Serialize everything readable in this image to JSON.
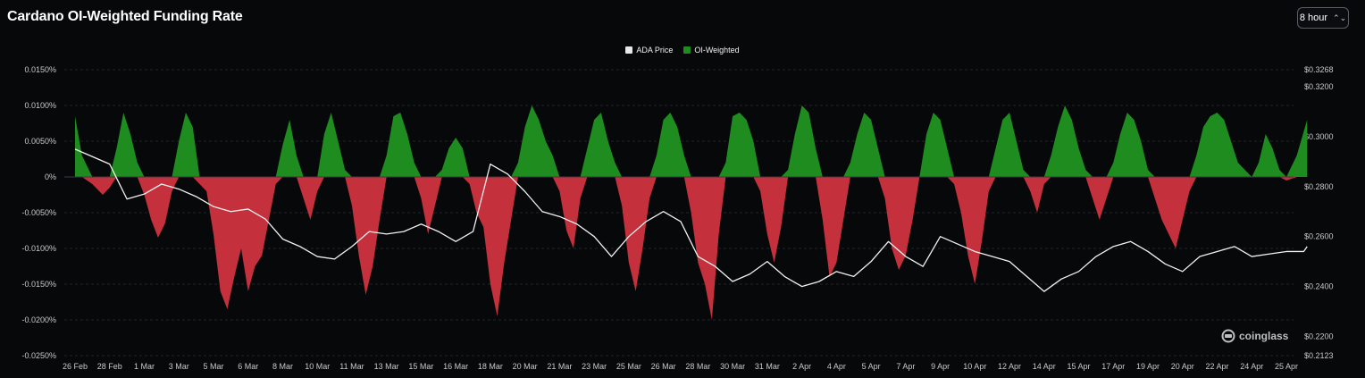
{
  "header": {
    "title": "Cardano OI-Weighted Funding Rate"
  },
  "interval": {
    "selected": "8 hour"
  },
  "brand": {
    "name": "coinglass",
    "icon": "coinglass-logo-icon"
  },
  "colors": {
    "positive": "#1e8c1e",
    "negative": "#c4303c",
    "price": "#f2f2f2",
    "background": "#07080a"
  },
  "chart_data": {
    "type": "area",
    "title": "Cardano OI-Weighted Funding Rate",
    "legend": {
      "placement": "top-center",
      "entries": [
        "ADA Price",
        "OI-Weighted"
      ]
    },
    "grid": true,
    "y_left": {
      "label": "",
      "range": [
        -0.025,
        0.015
      ],
      "ticks": [
        "0.0150%",
        "0.0100%",
        "0.0050%",
        "0%",
        "-0.0050%",
        "-0.0100%",
        "-0.0150%",
        "-0.0200%",
        "-0.0250%"
      ]
    },
    "y_right": {
      "label": "",
      "range": [
        0.2123,
        0.3268
      ],
      "ticks": [
        "$0.3268",
        "$0.3200",
        "$0.3000",
        "$0.2800",
        "$0.2600",
        "$0.2400",
        "$0.2200",
        "$0.2123"
      ]
    },
    "x_ticks": [
      "26 Feb",
      "28 Feb",
      "1 Mar",
      "3 Mar",
      "5 Mar",
      "6 Mar",
      "8 Mar",
      "10 Mar",
      "11 Mar",
      "13 Mar",
      "15 Mar",
      "16 Mar",
      "18 Mar",
      "20 Mar",
      "21 Mar",
      "23 Mar",
      "25 Mar",
      "26 Mar",
      "28 Mar",
      "30 Mar",
      "31 Mar",
      "2 Apr",
      "4 Apr",
      "5 Apr",
      "7 Apr",
      "9 Apr",
      "10 Apr",
      "12 Apr",
      "14 Apr",
      "15 Apr",
      "17 Apr",
      "19 Apr",
      "20 Apr",
      "22 Apr",
      "24 Apr",
      "25 Apr"
    ],
    "series": [
      {
        "name": "OI-Weighted",
        "unit": "%",
        "x_index": [
          0,
          0.2,
          0.5,
          0.8,
          1.0,
          1.2,
          1.4,
          1.6,
          1.8,
          2.0,
          2.2,
          2.4,
          2.6,
          2.8,
          3.0,
          3.2,
          3.4,
          3.6,
          3.8,
          4.0,
          4.2,
          4.4,
          4.6,
          4.8,
          5.0,
          5.2,
          5.4,
          5.6,
          5.8,
          6.0,
          6.2,
          6.4,
          6.6,
          6.8,
          7.0,
          7.2,
          7.4,
          7.6,
          7.8,
          8.0,
          8.2,
          8.4,
          8.6,
          8.8,
          9.0,
          9.2,
          9.4,
          9.6,
          9.8,
          10.0,
          10.2,
          10.4,
          10.6,
          10.8,
          11.0,
          11.2,
          11.4,
          11.6,
          11.8,
          12.0,
          12.2,
          12.4,
          12.6,
          12.8,
          13.0,
          13.2,
          13.4,
          13.6,
          13.8,
          14.0,
          14.2,
          14.4,
          14.6,
          14.8,
          15.0,
          15.2,
          15.4,
          15.6,
          15.8,
          16.0,
          16.2,
          16.4,
          16.6,
          16.8,
          17.0,
          17.2,
          17.4,
          17.6,
          17.8,
          18.0,
          18.2,
          18.4,
          18.6,
          18.8,
          19.0,
          19.2,
          19.4,
          19.6,
          19.8,
          20.0,
          20.2,
          20.4,
          20.6,
          20.8,
          21.0,
          21.2,
          21.4,
          21.6,
          21.8,
          22.0,
          22.2,
          22.4,
          22.6,
          22.8,
          23.0,
          23.2,
          23.4,
          23.6,
          23.8,
          24.0,
          24.2,
          24.4,
          24.6,
          24.8,
          25.0,
          25.2,
          25.4,
          25.6,
          25.8,
          26.0,
          26.2,
          26.4,
          26.6,
          26.8,
          27.0,
          27.2,
          27.4,
          27.6,
          27.8,
          28.0,
          28.2,
          28.4,
          28.6,
          28.8,
          29.0,
          29.2,
          29.4,
          29.6,
          29.8,
          30.0,
          30.2,
          30.4,
          30.6,
          30.8,
          31.0,
          31.2,
          31.4,
          31.6,
          31.8,
          32.0,
          32.2,
          32.4,
          32.6,
          32.8,
          33.0,
          33.2,
          33.4,
          33.6,
          33.8,
          34.0,
          34.2,
          34.4,
          34.6,
          34.8,
          35.0,
          35.3,
          35.6
        ],
        "values": [
          0.0085,
          0.003,
          -0.001,
          -0.0025,
          -0.0015,
          0.004,
          0.009,
          0.006,
          0.002,
          -0.0025,
          -0.006,
          -0.0085,
          -0.0065,
          -0.002,
          0.005,
          0.009,
          0.007,
          -0.001,
          -0.002,
          -0.008,
          -0.016,
          -0.0185,
          -0.014,
          -0.01,
          -0.016,
          -0.0125,
          -0.011,
          -0.006,
          -0.001,
          0.0045,
          0.008,
          0.003,
          -0.003,
          -0.006,
          -0.002,
          0.006,
          0.009,
          0.005,
          0.001,
          -0.004,
          -0.011,
          -0.0165,
          -0.0125,
          -0.006,
          0.003,
          0.0085,
          0.009,
          0.006,
          0.002,
          -0.003,
          -0.008,
          -0.004,
          0.001,
          0.004,
          0.0055,
          0.004,
          -0.001,
          -0.005,
          -0.007,
          -0.015,
          -0.0195,
          -0.012,
          -0.006,
          0.002,
          0.007,
          0.01,
          0.008,
          0.005,
          0.003,
          -0.002,
          -0.0075,
          -0.01,
          -0.003,
          0.004,
          0.008,
          0.009,
          0.005,
          0.002,
          -0.004,
          -0.012,
          -0.016,
          -0.01,
          -0.003,
          0.003,
          0.008,
          0.009,
          0.007,
          0.003,
          -0.005,
          -0.012,
          -0.015,
          -0.02,
          -0.008,
          0.002,
          0.0085,
          0.009,
          0.008,
          0.005,
          -0.002,
          -0.008,
          -0.012,
          -0.007,
          0.001,
          0.006,
          0.01,
          0.009,
          0.004,
          -0.006,
          -0.014,
          -0.012,
          -0.006,
          0.002,
          0.006,
          0.009,
          0.008,
          0.004,
          -0.003,
          -0.01,
          -0.013,
          -0.011,
          -0.006,
          0.0,
          0.006,
          0.009,
          0.008,
          0.004,
          -0.001,
          -0.005,
          -0.011,
          -0.015,
          -0.009,
          -0.002,
          0.004,
          0.008,
          0.009,
          0.005,
          0.001,
          -0.002,
          -0.005,
          -0.001,
          0.003,
          0.007,
          0.01,
          0.008,
          0.004,
          0.001,
          -0.003,
          -0.006,
          -0.003,
          0.002,
          0.006,
          0.009,
          0.008,
          0.005,
          0.001,
          -0.003,
          -0.006,
          -0.008,
          -0.01,
          -0.006,
          -0.002,
          0.003,
          0.007,
          0.0085,
          0.009,
          0.008,
          0.005,
          0.002,
          0.001,
          0.0,
          0.002,
          0.006,
          0.004,
          0.001,
          -0.0005,
          0.003,
          0.008
        ],
        "color": "#1e8c1e",
        "negative_color": "#c4303c"
      },
      {
        "name": "ADA Price",
        "unit": "$",
        "x_index": [
          0,
          0.5,
          1.0,
          1.5,
          2.0,
          2.5,
          3.0,
          3.5,
          4.0,
          4.5,
          5.0,
          5.5,
          6.0,
          6.5,
          7.0,
          7.5,
          8.0,
          8.5,
          9.0,
          9.5,
          10.0,
          10.5,
          11.0,
          11.5,
          12.0,
          12.5,
          13.0,
          13.5,
          14.0,
          14.5,
          15.0,
          15.5,
          16.0,
          16.5,
          17.0,
          17.5,
          18.0,
          18.5,
          19.0,
          19.5,
          20.0,
          20.5,
          21.0,
          21.5,
          22.0,
          22.5,
          23.0,
          23.5,
          24.0,
          24.5,
          25.0,
          25.5,
          26.0,
          26.5,
          27.0,
          27.5,
          28.0,
          28.5,
          29.0,
          29.5,
          30.0,
          30.5,
          31.0,
          31.5,
          32.0,
          32.5,
          33.0,
          33.5,
          34.0,
          34.5,
          35.0,
          35.5,
          35.6
        ],
        "values": [
          0.295,
          0.292,
          0.289,
          0.275,
          0.277,
          0.281,
          0.279,
          0.276,
          0.272,
          0.27,
          0.271,
          0.267,
          0.259,
          0.256,
          0.252,
          0.251,
          0.256,
          0.262,
          0.261,
          0.262,
          0.265,
          0.262,
          0.258,
          0.262,
          0.289,
          0.285,
          0.278,
          0.27,
          0.268,
          0.265,
          0.26,
          0.252,
          0.26,
          0.266,
          0.27,
          0.266,
          0.252,
          0.248,
          0.242,
          0.245,
          0.25,
          0.244,
          0.24,
          0.242,
          0.246,
          0.244,
          0.25,
          0.258,
          0.252,
          0.248,
          0.26,
          0.257,
          0.254,
          0.252,
          0.25,
          0.244,
          0.238,
          0.243,
          0.246,
          0.252,
          0.256,
          0.258,
          0.254,
          0.249,
          0.246,
          0.252,
          0.254,
          0.256,
          0.252,
          0.253,
          0.254,
          0.254,
          0.256
        ],
        "color": "#f2f2f2"
      }
    ]
  }
}
